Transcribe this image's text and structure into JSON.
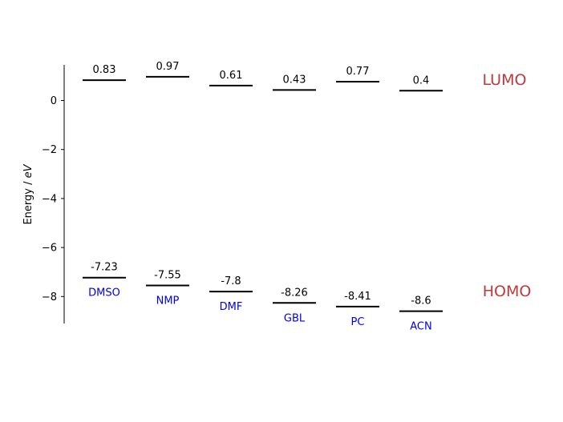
{
  "chart_data": {
    "type": "energy-level",
    "title": "",
    "ylabel_prefix": "Energy / ",
    "ylabel_unit": "eV",
    "ylim": [
      -9.1,
      1.45
    ],
    "yticks": [
      0,
      -2,
      -4,
      -6,
      -8
    ],
    "ytick_labels": [
      "0",
      "−2",
      "−4",
      "−6",
      "−8"
    ],
    "categories": [
      "DMSO",
      "NMP",
      "DMF",
      "GBL",
      "PC",
      "ACN"
    ],
    "lumo": [
      0.83,
      0.97,
      0.61,
      0.43,
      0.77,
      0.4
    ],
    "homo": [
      -7.23,
      -7.55,
      -7.8,
      -8.26,
      -8.41,
      -8.6
    ],
    "lumo_labels": [
      "0.83",
      "0.97",
      "0.61",
      "0.43",
      "0.77",
      "0.4"
    ],
    "homo_labels": [
      "-7.23",
      "-7.55",
      "-7.8",
      "-8.26",
      "-8.41",
      "-8.6"
    ],
    "band_labels": {
      "lumo": "LUMO",
      "homo": "HOMO"
    },
    "colors": {
      "level": "#000000",
      "solvent": "#0000ee",
      "band": "#c0393b"
    }
  }
}
